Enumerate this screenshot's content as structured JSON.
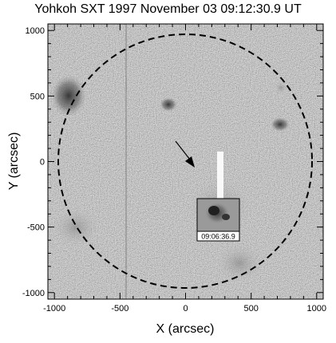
{
  "title": "Yohkoh SXT 1997 November 03 09:12:30.9 UT",
  "x_axis": {
    "label": "X (arcsec)",
    "range": [
      -1050,
      1050
    ],
    "ticks": [
      -1000,
      -500,
      0,
      500,
      1000
    ],
    "tick_labels": [
      "-1000",
      "-500",
      "0",
      "500",
      "1000"
    ]
  },
  "y_axis": {
    "label": "Y (arcsec)",
    "range": [
      -1050,
      1050
    ],
    "ticks": [
      -1000,
      -500,
      0,
      500,
      1000
    ],
    "tick_labels": [
      "-1000",
      "-500",
      "0",
      "500",
      "1000"
    ]
  },
  "image": {
    "description_colors": {
      "background": "#ffffff",
      "disk_fill": "#cfcfcf",
      "limb_circle": "#000000"
    },
    "solar_radius_arcsec": 970,
    "inset_label": "09:06:36.9",
    "arrow_tip_arcsec": [
      80,
      0
    ],
    "arrow_tail_arcsec": [
      -60,
      170
    ]
  }
}
